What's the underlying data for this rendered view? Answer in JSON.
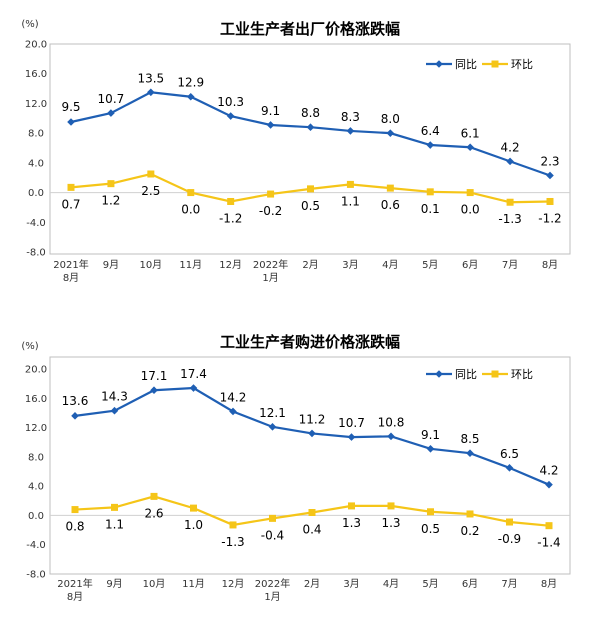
{
  "chart_data": [
    {
      "type": "line",
      "title": "工业生产者出厂价格涨跌幅",
      "ylabel": "(%)",
      "ylim": [
        -8.0,
        20.0
      ],
      "yticks": [
        "-8.0",
        "-4.0",
        "0.0",
        "4.0",
        "8.0",
        "12.0",
        "16.0",
        "20.0"
      ],
      "categories": [
        [
          "2021年",
          "8月"
        ],
        [
          "9月"
        ],
        [
          "10月"
        ],
        [
          "11月"
        ],
        [
          "12月"
        ],
        [
          "2022年",
          "1月"
        ],
        [
          "2月"
        ],
        [
          "3月"
        ],
        [
          "4月"
        ],
        [
          "5月"
        ],
        [
          "6月"
        ],
        [
          "7月"
        ],
        [
          "8月"
        ]
      ],
      "legend_position": "top-right",
      "series": [
        {
          "name": "同比",
          "color": "#1f5fb4",
          "marker": "diamond",
          "values": [
            9.5,
            10.7,
            13.5,
            12.9,
            10.3,
            9.1,
            8.8,
            8.3,
            8.0,
            6.4,
            6.1,
            4.2,
            2.3
          ],
          "labels": [
            "9.5",
            "10.7",
            "13.5",
            "12.9",
            "10.3",
            "9.1",
            "8.8",
            "8.3",
            "8.0",
            "6.4",
            "6.1",
            "4.2",
            "2.3"
          ]
        },
        {
          "name": "环比",
          "color": "#f5c518",
          "marker": "square",
          "values": [
            0.7,
            1.2,
            2.5,
            0.0,
            -1.2,
            -0.2,
            0.5,
            1.1,
            0.6,
            0.1,
            0.0,
            -1.3,
            -1.2
          ],
          "labels": [
            "0.7",
            "1.2",
            "2.5",
            "0.0",
            "-1.2",
            "-0.2",
            "0.5",
            "1.1",
            "0.6",
            "0.1",
            "0.0",
            "-1.3",
            "-1.2"
          ]
        }
      ]
    },
    {
      "type": "line",
      "title": "工业生产者购进价格涨跌幅",
      "ylabel": "(%)",
      "ylim": [
        -8.0,
        20.0
      ],
      "yticks": [
        "-8.0",
        "-4.0",
        "0.0",
        "4.0",
        "8.0",
        "12.0",
        "16.0",
        "20.0"
      ],
      "categories": [
        [
          "2021年",
          "8月"
        ],
        [
          "9月"
        ],
        [
          "10月"
        ],
        [
          "11月"
        ],
        [
          "12月"
        ],
        [
          "2022年",
          "1月"
        ],
        [
          "2月"
        ],
        [
          "3月"
        ],
        [
          "4月"
        ],
        [
          "5月"
        ],
        [
          "6月"
        ],
        [
          "7月"
        ],
        [
          "8月"
        ]
      ],
      "legend_position": "top-right",
      "series": [
        {
          "name": "同比",
          "color": "#1f5fb4",
          "marker": "diamond",
          "values": [
            13.6,
            14.3,
            17.1,
            17.4,
            14.2,
            12.1,
            11.2,
            10.7,
            10.8,
            9.1,
            8.5,
            6.5,
            4.2
          ],
          "labels": [
            "13.6",
            "14.3",
            "17.1",
            "17.4",
            "14.2",
            "12.1",
            "11.2",
            "10.7",
            "10.8",
            "9.1",
            "8.5",
            "6.5",
            "4.2"
          ]
        },
        {
          "name": "环比",
          "color": "#f5c518",
          "marker": "square",
          "values": [
            0.8,
            1.1,
            2.6,
            1.0,
            -1.3,
            -0.4,
            0.4,
            1.3,
            1.3,
            0.5,
            0.2,
            -0.9,
            -1.4
          ],
          "labels": [
            "0.8",
            "1.1",
            "2.6",
            "1.0",
            "-1.3",
            "-0.4",
            "0.4",
            "1.3",
            "1.3",
            "0.5",
            "0.2",
            "-0.9",
            "-1.4"
          ]
        }
      ]
    }
  ]
}
